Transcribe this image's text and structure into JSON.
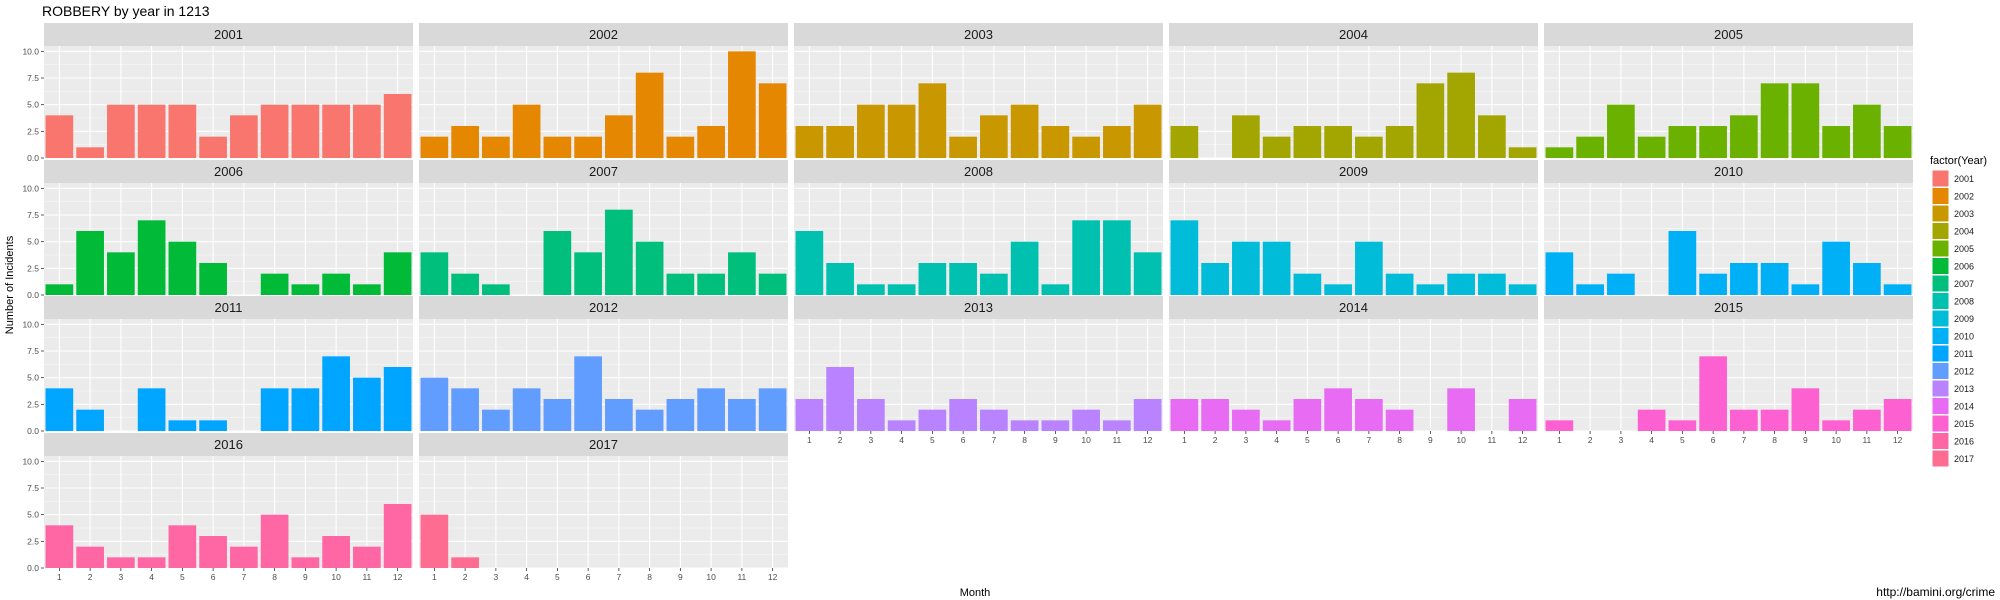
{
  "chart_data": {
    "type": "bar",
    "title": "ROBBERY by year in 1213",
    "xlabel": "Month",
    "ylabel": "Number of Incidents",
    "ylim": [
      0,
      10.5
    ],
    "y_ticks": [
      "0.0",
      "2.5",
      "5.0",
      "7.5",
      "10.0"
    ],
    "categories": [
      "1",
      "2",
      "3",
      "4",
      "5",
      "6",
      "7",
      "8",
      "9",
      "10",
      "11",
      "12"
    ],
    "grid": true,
    "legend_title": "factor(Year)",
    "legend_position": "right",
    "source": "http://bamini.org/crime",
    "series": [
      {
        "name": "2001",
        "color": "#F8766D",
        "values": [
          4,
          1,
          5,
          5,
          5,
          2,
          4,
          5,
          5,
          5,
          5,
          6
        ]
      },
      {
        "name": "2002",
        "color": "#E58700",
        "values": [
          2,
          3,
          2,
          5,
          2,
          2,
          4,
          8,
          2,
          3,
          10,
          7
        ]
      },
      {
        "name": "2003",
        "color": "#C99800",
        "values": [
          3,
          3,
          5,
          5,
          7,
          2,
          4,
          5,
          3,
          2,
          3,
          5
        ]
      },
      {
        "name": "2004",
        "color": "#A3A500",
        "values": [
          3,
          0,
          4,
          2,
          3,
          3,
          2,
          3,
          7,
          8,
          4,
          1
        ]
      },
      {
        "name": "2005",
        "color": "#6BB100",
        "values": [
          1,
          2,
          5,
          2,
          3,
          3,
          4,
          7,
          7,
          3,
          5,
          3
        ]
      },
      {
        "name": "2006",
        "color": "#00BA38",
        "values": [
          1,
          6,
          4,
          7,
          5,
          3,
          0,
          2,
          1,
          2,
          1,
          4
        ]
      },
      {
        "name": "2007",
        "color": "#00BF7D",
        "values": [
          4,
          2,
          1,
          0,
          6,
          4,
          8,
          5,
          2,
          2,
          4,
          2
        ]
      },
      {
        "name": "2008",
        "color": "#00C0AF",
        "values": [
          6,
          3,
          1,
          1,
          3,
          3,
          2,
          5,
          1,
          7,
          7,
          4
        ]
      },
      {
        "name": "2009",
        "color": "#00BCD8",
        "values": [
          7,
          3,
          5,
          5,
          2,
          1,
          5,
          2,
          1,
          2,
          2,
          1
        ]
      },
      {
        "name": "2010",
        "color": "#00B0F6",
        "values": [
          4,
          1,
          2,
          0,
          6,
          2,
          3,
          3,
          1,
          5,
          3,
          1
        ]
      },
      {
        "name": "2011",
        "color": "#00A5FF",
        "values": [
          4,
          2,
          0,
          4,
          1,
          1,
          0,
          4,
          4,
          7,
          5,
          6
        ]
      },
      {
        "name": "2012",
        "color": "#619CFF",
        "values": [
          5,
          4,
          2,
          4,
          3,
          7,
          3,
          2,
          3,
          4,
          3,
          4
        ]
      },
      {
        "name": "2013",
        "color": "#B983FF",
        "values": [
          3,
          6,
          3,
          1,
          2,
          3,
          2,
          1,
          1,
          2,
          1,
          3
        ]
      },
      {
        "name": "2014",
        "color": "#E76BF3",
        "values": [
          3,
          3,
          2,
          1,
          3,
          4,
          3,
          2,
          0,
          4,
          0,
          3
        ]
      },
      {
        "name": "2015",
        "color": "#FD61D1",
        "values": [
          1,
          0,
          0,
          2,
          1,
          7,
          2,
          2,
          4,
          1,
          2,
          3
        ]
      },
      {
        "name": "2016",
        "color": "#FF67A4",
        "values": [
          4,
          2,
          1,
          1,
          4,
          3,
          2,
          5,
          1,
          3,
          2,
          6
        ]
      },
      {
        "name": "2017",
        "color": "#FF6C91",
        "values": [
          5,
          1,
          0,
          0,
          0,
          0,
          0,
          0,
          0,
          0,
          0,
          0
        ]
      }
    ]
  }
}
